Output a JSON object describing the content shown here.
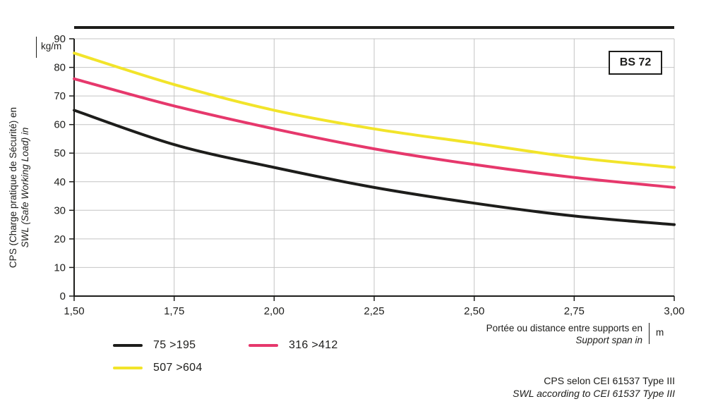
{
  "badge": {
    "label": "BS 72"
  },
  "y_axis": {
    "label_fr": "CPS (Charge pratique de Sécurité) en",
    "label_en": "SWL (Safe Working Load) in",
    "unit": "kg/m"
  },
  "x_axis": {
    "label_fr": "Portée ou distance entre supports en",
    "label_en": "Support span in",
    "unit": "m"
  },
  "legend": [
    {
      "label": "75 >195",
      "color": "#1d1d1b"
    },
    {
      "label": "316 >412",
      "color": "#e6386c"
    },
    {
      "label": "507 >604",
      "color": "#f2e42a"
    }
  ],
  "footnote": {
    "line1": "CPS selon CEI 61537 Type III",
    "line2": "SWL according to CEI 61537 Type III"
  },
  "chart_data": {
    "type": "line",
    "x": [
      1.5,
      1.75,
      2.0,
      2.25,
      2.5,
      2.75,
      3.0
    ],
    "x_tick_labels": [
      "1,50",
      "1,75",
      "2,00",
      "2,25",
      "2,50",
      "2,75",
      "3,00"
    ],
    "xlim": [
      1.5,
      3.0
    ],
    "ylim": [
      0,
      90
    ],
    "y_ticks": [
      0,
      10,
      20,
      30,
      40,
      50,
      60,
      70,
      80,
      90
    ],
    "xlabel": "Portée ou distance entre supports en / Support span in (m)",
    "ylabel": "CPS (Charge pratique de Sécurité) en / SWL (Safe Working Load) in (kg/m)",
    "grid": true,
    "legend_position": "bottom",
    "annotation": "BS 72",
    "series": [
      {
        "name": "75 >195",
        "color": "#1d1d1b",
        "values": [
          65,
          53,
          45,
          38,
          32.5,
          28,
          25
        ]
      },
      {
        "name": "316 >412",
        "color": "#e6386c",
        "values": [
          76,
          66.5,
          58.5,
          51.5,
          46,
          41.5,
          38
        ]
      },
      {
        "name": "507 >604",
        "color": "#f2e42a",
        "values": [
          85,
          74,
          65,
          58.5,
          53.5,
          48.5,
          45
        ]
      }
    ]
  }
}
